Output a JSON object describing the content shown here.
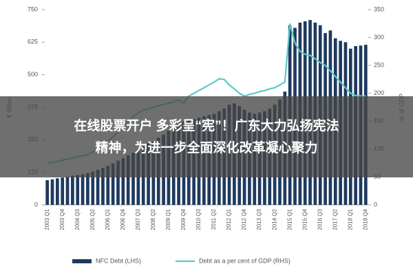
{
  "chart_data": {
    "type": "bar-line",
    "y_label": "€ billion",
    "y2_label": "% of GDP",
    "categories": [
      "2003 Q1",
      null,
      null,
      "2003 Q4",
      null,
      null,
      "2004 Q3",
      null,
      null,
      "2005 Q2",
      null,
      null,
      "2006 Q1",
      null,
      null,
      "2006 Q4",
      null,
      null,
      "2007 Q3",
      null,
      null,
      "2008 Q2",
      null,
      null,
      "2009 Q1",
      null,
      null,
      "2009 Q4",
      null,
      null,
      "2010 Q3",
      null,
      null,
      "2011 Q2",
      null,
      null,
      "2012 Q1",
      null,
      null,
      "2012 Q4",
      null,
      null,
      "2013 Q3",
      null,
      null,
      "2014 Q2",
      null,
      null,
      "2015 Q1",
      null,
      null,
      "2015 Q4",
      null,
      null,
      "2016 Q3",
      null,
      null,
      "2017 Q2",
      null,
      null,
      "2018 Q1",
      null,
      null,
      "2018 Q4"
    ],
    "series": [
      {
        "name": "NFC Debt (LHS)",
        "color": "#1f3a5f",
        "axis": "y",
        "values": [
          95,
          98,
          102,
          105,
          108,
          112,
          115,
          118,
          122,
          128,
          135,
          142,
          150,
          160,
          170,
          180,
          190,
          200,
          212,
          225,
          235,
          245,
          258,
          270,
          285,
          300,
          310,
          320,
          325,
          330,
          335,
          340,
          345,
          350,
          360,
          370,
          385,
          390,
          380,
          365,
          355,
          350,
          355,
          360,
          370,
          385,
          405,
          435,
          690,
          680,
          700,
          705,
          710,
          700,
          690,
          660,
          670,
          640,
          630,
          625,
          600,
          610,
          612,
          615
        ]
      },
      {
        "name": "Debt as a per cent of GDP (RHS)",
        "color": "#5bc8c8",
        "axis": "y2",
        "values": [
          75,
          76,
          78,
          80,
          82,
          84,
          86,
          88,
          90,
          95,
          100,
          108,
          115,
          122,
          130,
          140,
          150,
          158,
          165,
          170,
          172,
          175,
          178,
          180,
          182,
          185,
          188,
          182,
          195,
          200,
          205,
          210,
          215,
          220,
          226,
          225,
          215,
          208,
          200,
          195,
          198,
          200,
          203,
          205,
          208,
          210,
          215,
          220,
          325,
          290,
          275,
          270,
          268,
          262,
          255,
          250,
          240,
          230,
          220,
          210,
          200,
          196,
          195,
          195
        ]
      }
    ],
    "ylim": [
      0,
      750
    ],
    "yticks": [
      0,
      125,
      250,
      375,
      500,
      625,
      750
    ],
    "y2lim": [
      0,
      350
    ],
    "y2ticks": [
      0,
      50,
      100,
      150,
      200,
      250,
      300,
      350
    ],
    "legend": "bottom"
  },
  "caption": [
    "在线股票开户 多彩呈“宪”！广东大力弘扬宪法",
    "精神，为进一步全面深化改革凝心聚力"
  ]
}
